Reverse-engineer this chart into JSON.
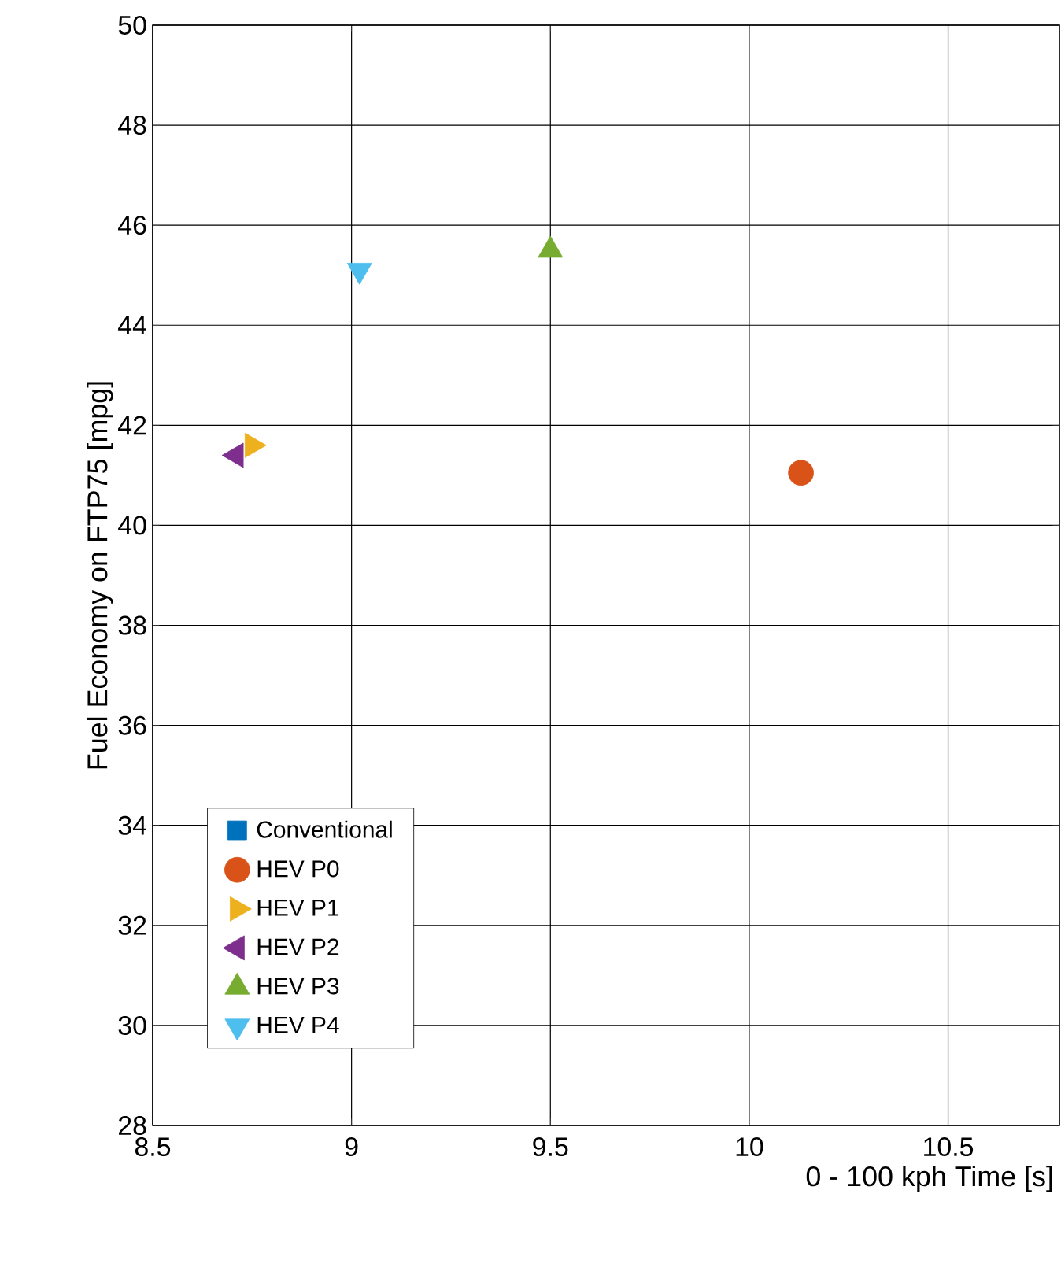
{
  "chart_data": {
    "type": "scatter",
    "xlabel": "0 - 100 kph Time [s]",
    "ylabel": "Fuel Economy on FTP75 [mpg]",
    "xlim": [
      8.5,
      10.78
    ],
    "ylim": [
      28,
      50
    ],
    "xticks": [
      8.5,
      9,
      9.5,
      10,
      10.5
    ],
    "yticks": [
      28,
      30,
      32,
      34,
      36,
      38,
      40,
      42,
      44,
      46,
      48,
      50
    ],
    "grid": true,
    "legend": "bottom left",
    "series": [
      {
        "name": "Conventional",
        "color": "#0072bd",
        "marker": "square"
      },
      {
        "name": "HEV P0",
        "color": "#d95319",
        "marker": "circle",
        "x": [
          10.13
        ],
        "values": [
          41.05
        ]
      },
      {
        "name": "HEV P1",
        "color": "#edb120",
        "marker": "triangle-right",
        "x": [
          8.75
        ],
        "values": [
          41.6
        ]
      },
      {
        "name": "HEV P2",
        "color": "#7e2f8e",
        "marker": "triangle-left",
        "x": [
          8.71
        ],
        "values": [
          41.4
        ]
      },
      {
        "name": "HEV P3",
        "color": "#77ac30",
        "marker": "triangle",
        "x": [
          9.5
        ],
        "values": [
          45.5
        ]
      },
      {
        "name": "HEV P4",
        "color": "#4dbeee",
        "marker": "triangle-down",
        "x": [
          9.02
        ],
        "values": [
          45.1
        ]
      }
    ]
  }
}
